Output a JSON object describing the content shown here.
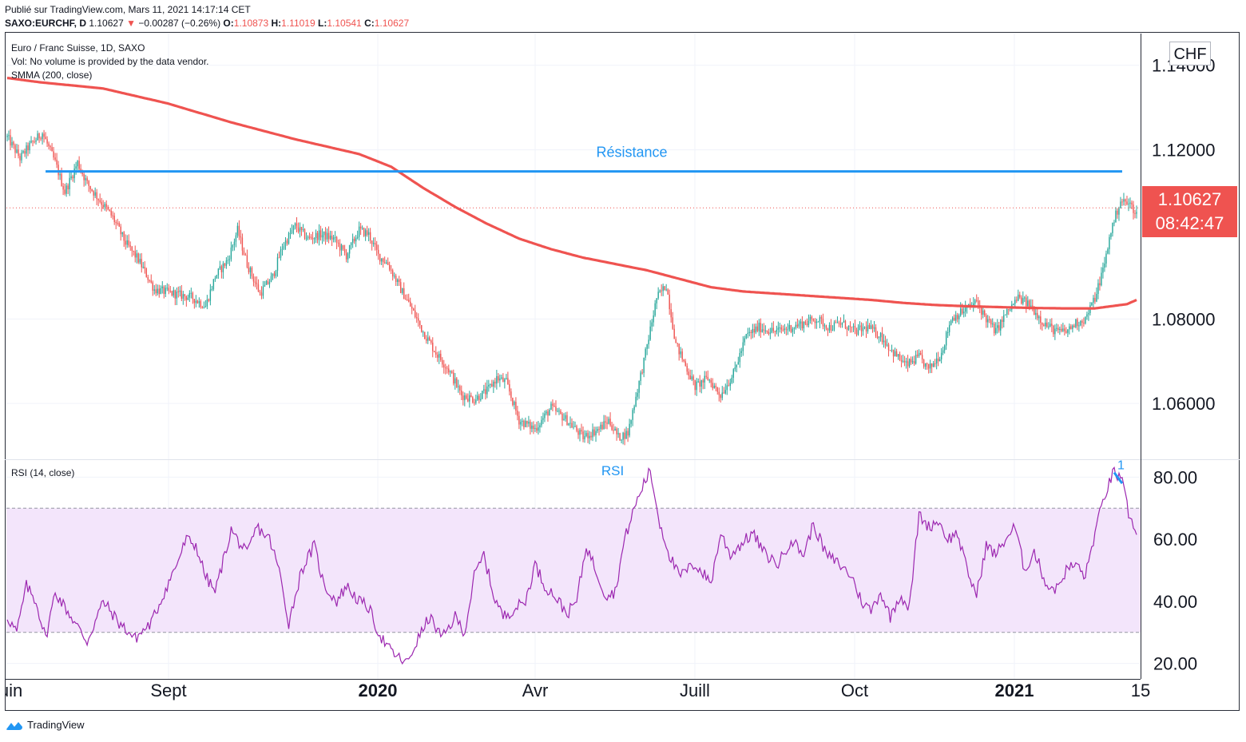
{
  "header": {
    "published": "Publié sur TradingView.com, Mars 11, 2021 14:17:14 CET",
    "symbol": "SAXO:EURCHF, D",
    "last": "1.10627",
    "change": "−0.00287 (−0.26%)",
    "ohlc_o_label": "O:",
    "ohlc_o": "1.10873",
    "ohlc_h_label": "H:",
    "ohlc_h": "1.11019",
    "ohlc_l_label": "L:",
    "ohlc_l": "1.10541",
    "ohlc_c_label": "C:",
    "ohlc_c": "1.10627"
  },
  "legend": {
    "title": "Euro / Franc Suisse, 1D, SAXO",
    "vol": "Vol: No volume is provided by the data vendor.",
    "smma": "SMMA (200, close)",
    "rsi": "RSI (14, close)"
  },
  "currency": "CHF",
  "price_tag": {
    "price": "1.10627",
    "countdown": "08:42:47"
  },
  "footer": {
    "brand": "TradingView"
  },
  "colors": {
    "up": "#26a69a",
    "down": "#ef5350",
    "smma": "#ef5350",
    "resistance": "#2196f3",
    "rsi": "#9c27b0",
    "rsi_band": "#f3e5fb"
  },
  "chart_data": [
    {
      "type": "candlestick",
      "pane": "price",
      "ylim": [
        1.047,
        1.1475
      ],
      "yticks": [
        1.14,
        1.12,
        1.08,
        1.06
      ],
      "ytick_labels": [
        "1.14000",
        "1.12000",
        "1.08000",
        "1.06000"
      ],
      "x_labels": [
        "Juin",
        "Sept",
        "2020",
        "Avr",
        "Juill",
        "Oct",
        "2021",
        "15"
      ],
      "price_anchors": [
        [
          0,
          1.123
        ],
        [
          8,
          1.118
        ],
        [
          14,
          1.121
        ],
        [
          22,
          1.124
        ],
        [
          30,
          1.117
        ],
        [
          36,
          1.11
        ],
        [
          44,
          1.117
        ],
        [
          50,
          1.112
        ],
        [
          58,
          1.108
        ],
        [
          66,
          1.104
        ],
        [
          74,
          1.098
        ],
        [
          82,
          1.094
        ],
        [
          92,
          1.087
        ],
        [
          104,
          1.086
        ],
        [
          116,
          1.085
        ],
        [
          124,
          1.083
        ],
        [
          130,
          1.09
        ],
        [
          138,
          1.094
        ],
        [
          144,
          1.101
        ],
        [
          150,
          1.093
        ],
        [
          158,
          1.086
        ],
        [
          166,
          1.09
        ],
        [
          172,
          1.097
        ],
        [
          180,
          1.102
        ],
        [
          188,
          1.099
        ],
        [
          196,
          1.1
        ],
        [
          204,
          1.099
        ],
        [
          212,
          1.095
        ],
        [
          220,
          1.101
        ],
        [
          226,
          1.1
        ],
        [
          232,
          1.095
        ],
        [
          238,
          1.093
        ],
        [
          246,
          1.087
        ],
        [
          252,
          1.083
        ],
        [
          260,
          1.077
        ],
        [
          268,
          1.072
        ],
        [
          276,
          1.068
        ],
        [
          284,
          1.062
        ],
        [
          292,
          1.061
        ],
        [
          300,
          1.063
        ],
        [
          306,
          1.066
        ],
        [
          312,
          1.065
        ],
        [
          320,
          1.056
        ],
        [
          330,
          1.054
        ],
        [
          340,
          1.059
        ],
        [
          350,
          1.056
        ],
        [
          360,
          1.052
        ],
        [
          370,
          1.054
        ],
        [
          376,
          1.056
        ],
        [
          382,
          1.052
        ],
        [
          388,
          1.053
        ],
        [
          392,
          1.06
        ],
        [
          398,
          1.07
        ],
        [
          406,
          1.085
        ],
        [
          412,
          1.088
        ],
        [
          418,
          1.074
        ],
        [
          424,
          1.069
        ],
        [
          430,
          1.064
        ],
        [
          438,
          1.066
        ],
        [
          446,
          1.062
        ],
        [
          454,
          1.067
        ],
        [
          462,
          1.076
        ],
        [
          470,
          1.078
        ],
        [
          480,
          1.077
        ],
        [
          490,
          1.078
        ],
        [
          498,
          1.079
        ],
        [
          506,
          1.08
        ],
        [
          514,
          1.078
        ],
        [
          522,
          1.079
        ],
        [
          530,
          1.077
        ],
        [
          538,
          1.078
        ],
        [
          546,
          1.076
        ],
        [
          554,
          1.072
        ],
        [
          562,
          1.069
        ],
        [
          570,
          1.071
        ],
        [
          576,
          1.068
        ],
        [
          584,
          1.072
        ],
        [
          590,
          1.08
        ],
        [
          598,
          1.082
        ],
        [
          606,
          1.084
        ],
        [
          612,
          1.08
        ],
        [
          618,
          1.077
        ],
        [
          624,
          1.081
        ],
        [
          632,
          1.085
        ],
        [
          640,
          1.083
        ],
        [
          648,
          1.079
        ],
        [
          656,
          1.077
        ],
        [
          662,
          1.077
        ],
        [
          668,
          1.079
        ],
        [
          674,
          1.08
        ],
        [
          680,
          1.085
        ],
        [
          686,
          1.093
        ],
        [
          690,
          1.101
        ],
        [
          696,
          1.108
        ],
        [
          702,
          1.107
        ],
        [
          706,
          1.105
        ]
      ],
      "smma_anchors": [
        [
          0,
          1.137
        ],
        [
          20,
          1.136
        ],
        [
          60,
          1.1345
        ],
        [
          100,
          1.131
        ],
        [
          140,
          1.1265
        ],
        [
          180,
          1.1225
        ],
        [
          220,
          1.119
        ],
        [
          240,
          1.116
        ],
        [
          260,
          1.111
        ],
        [
          280,
          1.1065
        ],
        [
          300,
          1.1025
        ],
        [
          320,
          1.099
        ],
        [
          340,
          1.0965
        ],
        [
          360,
          1.0945
        ],
        [
          380,
          1.093
        ],
        [
          400,
          1.0915
        ],
        [
          420,
          1.0895
        ],
        [
          440,
          1.0875
        ],
        [
          460,
          1.0865
        ],
        [
          480,
          1.086
        ],
        [
          500,
          1.0855
        ],
        [
          520,
          1.085
        ],
        [
          540,
          1.0845
        ],
        [
          560,
          1.0838
        ],
        [
          580,
          1.0833
        ],
        [
          600,
          1.083
        ],
        [
          620,
          1.0828
        ],
        [
          640,
          1.0826
        ],
        [
          660,
          1.0825
        ],
        [
          680,
          1.0825
        ],
        [
          700,
          1.0835
        ],
        [
          706,
          1.0845
        ]
      ],
      "resistance": {
        "label": "Résistance",
        "value": 1.1149,
        "x_from": 24,
        "x_to": 697
      },
      "last_price": 1.10627
    },
    {
      "type": "line",
      "pane": "rsi",
      "ylim": [
        15,
        85
      ],
      "yticks": [
        80,
        60,
        40,
        20
      ],
      "ytick_labels": [
        "80.00",
        "60.00",
        "40.00",
        "20.00"
      ],
      "band": [
        30,
        70
      ],
      "title": "RSI",
      "rsi_anchors": [
        [
          0,
          35
        ],
        [
          6,
          30
        ],
        [
          12,
          45
        ],
        [
          18,
          40
        ],
        [
          24,
          28
        ],
        [
          30,
          43
        ],
        [
          40,
          35
        ],
        [
          50,
          27
        ],
        [
          60,
          40
        ],
        [
          70,
          33
        ],
        [
          80,
          28
        ],
        [
          90,
          33
        ],
        [
          100,
          45
        ],
        [
          106,
          52
        ],
        [
          112,
          60
        ],
        [
          118,
          58
        ],
        [
          124,
          48
        ],
        [
          130,
          43
        ],
        [
          140,
          63
        ],
        [
          150,
          55
        ],
        [
          156,
          64
        ],
        [
          164,
          60
        ],
        [
          170,
          50
        ],
        [
          176,
          33
        ],
        [
          184,
          50
        ],
        [
          192,
          58
        ],
        [
          198,
          45
        ],
        [
          206,
          40
        ],
        [
          212,
          45
        ],
        [
          220,
          40
        ],
        [
          226,
          38
        ],
        [
          232,
          30
        ],
        [
          238,
          25
        ],
        [
          244,
          22
        ],
        [
          250,
          20
        ],
        [
          256,
          27
        ],
        [
          264,
          35
        ],
        [
          272,
          28
        ],
        [
          280,
          35
        ],
        [
          286,
          30
        ],
        [
          292,
          48
        ],
        [
          298,
          55
        ],
        [
          304,
          42
        ],
        [
          310,
          35
        ],
        [
          318,
          38
        ],
        [
          324,
          40
        ],
        [
          330,
          52
        ],
        [
          336,
          45
        ],
        [
          342,
          42
        ],
        [
          350,
          36
        ],
        [
          356,
          40
        ],
        [
          362,
          58
        ],
        [
          368,
          50
        ],
        [
          374,
          42
        ],
        [
          380,
          43
        ],
        [
          386,
          60
        ],
        [
          392,
          70
        ],
        [
          398,
          78
        ],
        [
          402,
          82
        ],
        [
          408,
          65
        ],
        [
          414,
          55
        ],
        [
          420,
          48
        ],
        [
          430,
          52
        ],
        [
          440,
          46
        ],
        [
          446,
          62
        ],
        [
          452,
          55
        ],
        [
          458,
          58
        ],
        [
          466,
          62
        ],
        [
          474,
          55
        ],
        [
          482,
          52
        ],
        [
          490,
          60
        ],
        [
          498,
          55
        ],
        [
          504,
          65
        ],
        [
          512,
          55
        ],
        [
          520,
          52
        ],
        [
          528,
          48
        ],
        [
          534,
          40
        ],
        [
          540,
          37
        ],
        [
          546,
          43
        ],
        [
          552,
          35
        ],
        [
          558,
          42
        ],
        [
          564,
          38
        ],
        [
          570,
          68
        ],
        [
          576,
          64
        ],
        [
          582,
          66
        ],
        [
          588,
          60
        ],
        [
          594,
          62
        ],
        [
          600,
          50
        ],
        [
          606,
          42
        ],
        [
          612,
          58
        ],
        [
          618,
          55
        ],
        [
          624,
          60
        ],
        [
          630,
          64
        ],
        [
          636,
          50
        ],
        [
          642,
          56
        ],
        [
          650,
          45
        ],
        [
          656,
          44
        ],
        [
          662,
          50
        ],
        [
          668,
          52
        ],
        [
          674,
          48
        ],
        [
          680,
          62
        ],
        [
          686,
          74
        ],
        [
          692,
          82
        ],
        [
          697,
          78
        ],
        [
          702,
          66
        ],
        [
          706,
          63
        ]
      ],
      "trendline": {
        "x_from": 692,
        "y_from": 81.5,
        "x_to": 697,
        "y_to": 78,
        "label": "1"
      }
    }
  ]
}
